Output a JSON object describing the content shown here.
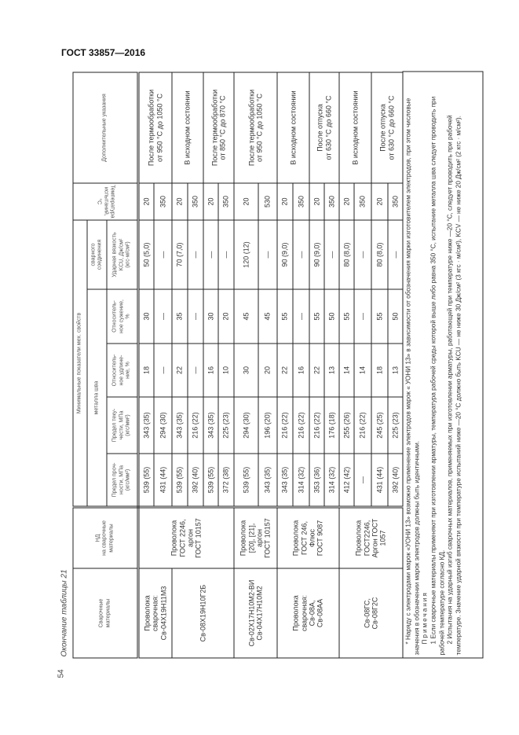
{
  "document": {
    "title": "ГОСТ 33857—2016",
    "page_number": "54",
    "caption": "Окончание таблицы 21"
  },
  "table": {
    "headers": {
      "materials": "Сварочные\nматериалы",
      "nd": "НД\nна сварочные\nматериалы",
      "min_props": "Минимальные показатели мех. свойств",
      "weld_metal": "металла шва",
      "weld_joint": "сварного\nсоединения",
      "ultimate_strength": "Предел проч-\nности, МПа\n(кгс/мм²)",
      "yield_strength": "Предел теку-\nчести, МПа\n(кгс/мм²)",
      "elongation": "Относитель-\nное удлине-\nние, %",
      "reduction": "Относитель-\nное сужение,\n%",
      "impact": "Ударная вязкость\nKCU, Дж/см²\n(кгс·м/см²)",
      "test_temp": "Температура\nиспытаний, °С",
      "notes": "Дополнительные указания"
    },
    "material_groups": [
      {
        "label": "Проволока\nсварочная:\nСв-04Х19Н11М3",
        "row_count": 2
      },
      {
        "label": "Св-08Х19Н10Г2Б",
        "row_count": 4
      },
      {
        "label": "Св-02Х17Н10М2-ВИ\nСв-04Х17Н10М2",
        "row_count": 2
      },
      {
        "label": "Проволока\nсварочная:\nСв-08А,\nСв-08АА",
        "row_count": 4
      },
      {
        "label": "Св-08ГС,\nСв-08Г2С",
        "row_count": 4
      }
    ],
    "nd_groups": [
      {
        "label": "Проволока\nГОСТ 2246,\nаргон\nГОСТ 10157",
        "row_count": 6
      },
      {
        "label": "Проволока\n[20], [21],\nаргон\nГОСТ 10157",
        "row_count": 2
      },
      {
        "label": "Проволока\nГОСТ 246,\nФлюс\nГОСТ 9087",
        "row_count": 4
      },
      {
        "label": "Проволока\nГОСТ2246,\nАргон ГОСТ\n1057",
        "row_count": 4
      }
    ],
    "note_groups": [
      {
        "label": "После термообработки\nот 950 °С до 1050 °С",
        "row_count": 2
      },
      {
        "label": "В исходном состоянии",
        "row_count": 2
      },
      {
        "label": "После термообработки\nот 850 °С до 870 °С",
        "row_count": 2
      },
      {
        "label": "После термообработки\nот 950 °С до 1050 °С",
        "row_count": 2
      },
      {
        "label": "В исходном состоянии",
        "row_count": 2
      },
      {
        "label": "После отпуска\nот 630 °С до 660 °С",
        "row_count": 2
      },
      {
        "label": "В исходном состоянии",
        "row_count": 2
      },
      {
        "label": "После отпуска\nот 630 °С до 660 °С",
        "row_count": 2
      }
    ],
    "rows": [
      [
        "539 (55)",
        "343 (35)",
        "18",
        "30",
        "50 (5,0)",
        "20"
      ],
      [
        "431 (44)",
        "294 (30)",
        "—",
        "—",
        "—",
        "350"
      ],
      [
        "539 (55)",
        "343 (35)",
        "22",
        "35",
        "70 (7,0)",
        "20"
      ],
      [
        "392 (40)",
        "216 (22)",
        "—",
        "—",
        "—",
        "350"
      ],
      [
        "539 (55)",
        "343 (35)",
        "16",
        "30",
        "—",
        "20"
      ],
      [
        "372 (38)",
        "225 (23)",
        "10",
        "20",
        "—",
        "350"
      ],
      [
        "539 (55)",
        "294 (30)",
        "30",
        "45",
        "120 (12)",
        "20"
      ],
      [
        "343 (35)",
        "196 (20)",
        "20",
        "45",
        "—",
        "530"
      ],
      [
        "343 (35)",
        "216 (22)",
        "22",
        "55",
        "90 (9,0)",
        "20"
      ],
      [
        "314 (32)",
        "216 (22)",
        "16",
        "—",
        "—",
        "350"
      ],
      [
        "353 (36)",
        "216 (22)",
        "22",
        "55",
        "90 (9,0)",
        "20"
      ],
      [
        "314 (32)",
        "176 (18)",
        "13",
        "50",
        "—",
        "350"
      ],
      [
        "412 (42)",
        "255 (26)",
        "14",
        "55",
        "80 (8,0)",
        "20"
      ],
      [
        "—",
        "216 (22)",
        "14",
        "—",
        "—",
        "350"
      ],
      [
        "431 (44)",
        "245 (25)",
        "18",
        "55",
        "80 (8,0)",
        "20"
      ],
      [
        "392 (40)",
        "225 (23)",
        "13",
        "50",
        "—",
        "350"
      ]
    ]
  },
  "footnotes": {
    "asterisk": "* Наряду с электродами марок «УОНИ 13» возможно применение электродов марок « УОНИ 13» в зависимости от обозначения марки изготовителем электродов, при этом числовые значения в обозначении марок электродов должны быть идентичными.",
    "notes_heading": "Примечания",
    "note1": "1 Если сварочные материалы применяют при изготовлении арматуры, температура рабочей среды которой выше либо равна 350 °С, испытание металла шва следует проводить при рабочей температуре согласно КД.",
    "note2": "2 Испытания на ударный изгиб сварочных материалов, применяемых при изготовлении арматуры, работающей при температуре ниже —20 °С, следует проводить при рабочей температуре. Значение ударной вязкости при температуре испытаний ниже —20 °С должно быть KCU — не ниже 30 Дж/см² (3 кгс · м/см²), KCV — не ниже 20 Дж/см² (2 кгс · м/см²)."
  }
}
